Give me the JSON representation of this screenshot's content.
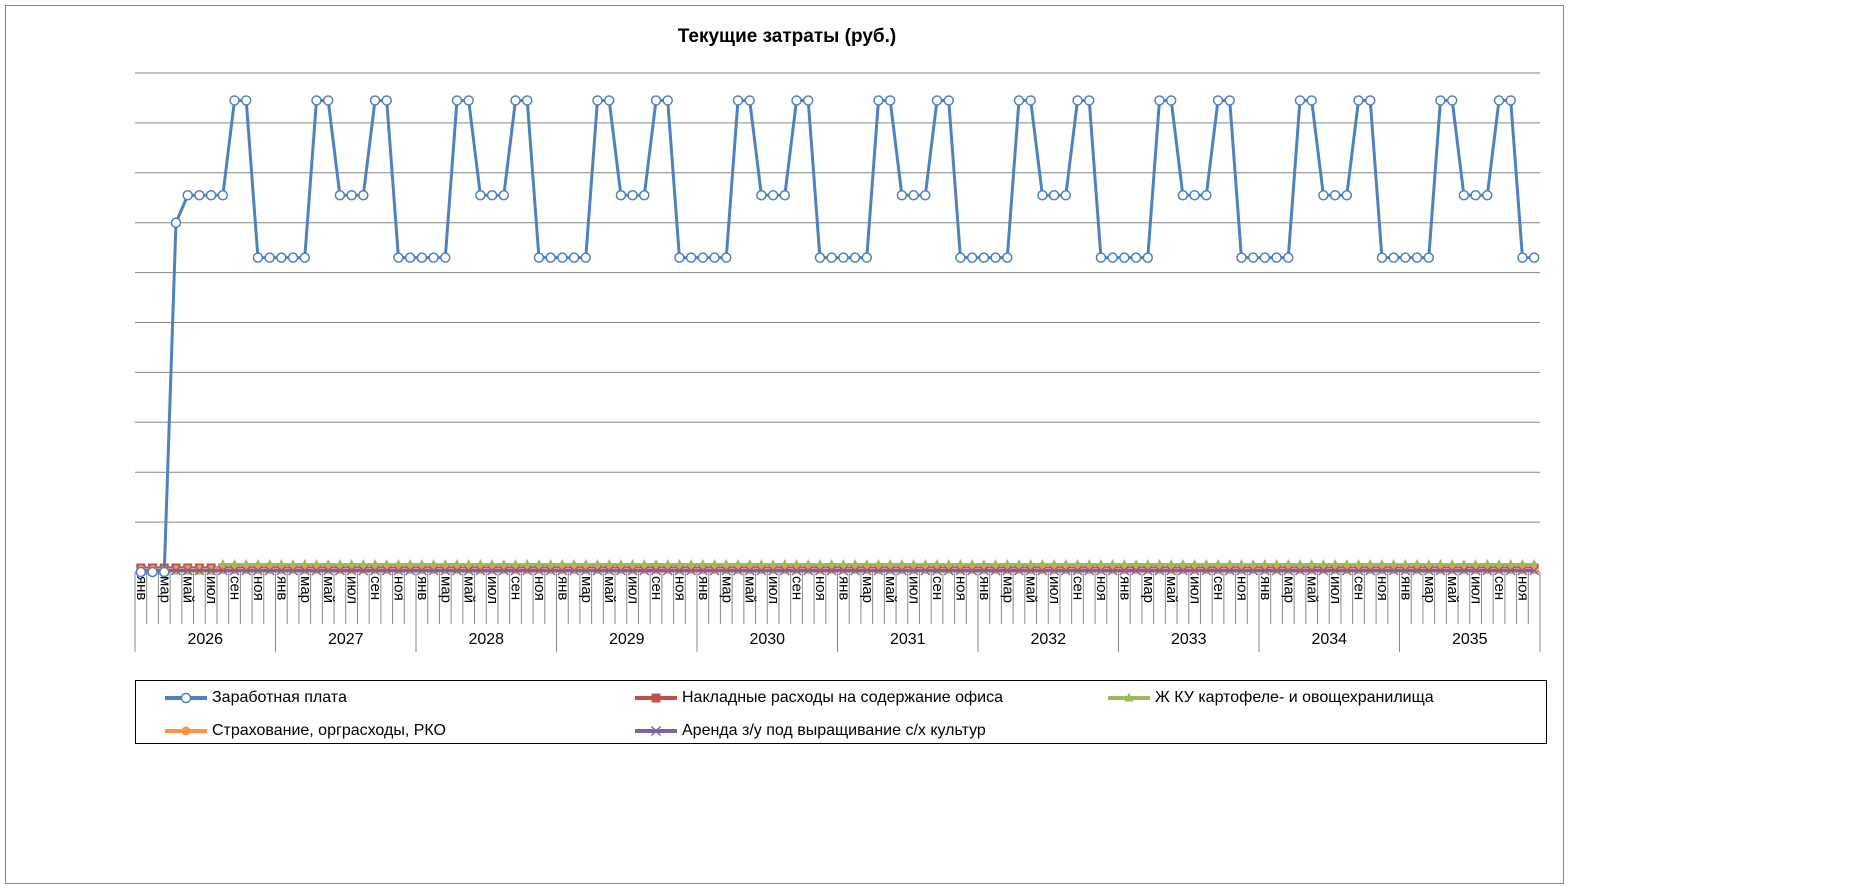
{
  "chart_data": {
    "type": "line",
    "title": "Текущие затраты (руб.)",
    "categories": [
      "янв",
      null,
      "мар",
      null,
      "май",
      null,
      "июл",
      null,
      "сен",
      null,
      "ноя",
      null,
      "янв",
      null,
      "мар",
      null,
      "май",
      null,
      "июл",
      null,
      "сен",
      null,
      "ноя",
      null,
      "янв",
      null,
      "мар",
      null,
      "май",
      null,
      "июл",
      null,
      "сен",
      null,
      "ноя",
      null,
      "янв",
      null,
      "мар",
      null,
      "май",
      null,
      "июл",
      null,
      "сен",
      null,
      "ноя",
      null,
      "янв",
      null,
      "мар",
      null,
      "май",
      null,
      "июл",
      null,
      "сен",
      null,
      "ноя",
      null,
      "янв",
      null,
      "мар",
      null,
      "май",
      null,
      "июл",
      null,
      "сен",
      null,
      "ноя",
      null,
      "янв",
      null,
      "мар",
      null,
      "май",
      null,
      "июл",
      null,
      "сен",
      null,
      "ноя",
      null,
      "янв",
      null,
      "мар",
      null,
      "май",
      null,
      "июл",
      null,
      "сен",
      null,
      "ноя",
      null,
      "янв",
      null,
      "мар",
      null,
      "май",
      null,
      "июл",
      null,
      "сен",
      null,
      "ноя",
      null,
      "янв",
      null,
      "мар",
      null,
      "май",
      null,
      "июл",
      null,
      "сен",
      null,
      "ноя",
      null
    ],
    "groups": [
      "2026",
      "2027",
      "2028",
      "2029",
      "2030",
      "2031",
      "2032",
      "2033",
      "2034",
      "2035"
    ],
    "ylim": [
      0,
      10
    ],
    "yticks": [
      0,
      1,
      2,
      3,
      4,
      5,
      6,
      7,
      8,
      9,
      10
    ],
    "grid": true,
    "series": [
      {
        "name": "Заработная плата",
        "color": "#4f81bd",
        "marker": "circle-open",
        "values": [
          0,
          0,
          0,
          7.0,
          7.55,
          7.55,
          7.55,
          7.55,
          9.45,
          9.45,
          6.3,
          6.3,
          6.3,
          6.3,
          6.3,
          9.45,
          9.45,
          7.55,
          7.55,
          7.55,
          9.45,
          9.45,
          6.3,
          6.3,
          6.3,
          6.3,
          6.3,
          9.45,
          9.45,
          7.55,
          7.55,
          7.55,
          9.45,
          9.45,
          6.3,
          6.3,
          6.3,
          6.3,
          6.3,
          9.45,
          9.45,
          7.55,
          7.55,
          7.55,
          9.45,
          9.45,
          6.3,
          6.3,
          6.3,
          6.3,
          6.3,
          9.45,
          9.45,
          7.55,
          7.55,
          7.55,
          9.45,
          9.45,
          6.3,
          6.3,
          6.3,
          6.3,
          6.3,
          9.45,
          9.45,
          7.55,
          7.55,
          7.55,
          9.45,
          9.45,
          6.3,
          6.3,
          6.3,
          6.3,
          6.3,
          9.45,
          9.45,
          7.55,
          7.55,
          7.55,
          9.45,
          9.45,
          6.3,
          6.3,
          6.3,
          6.3,
          6.3,
          9.45,
          9.45,
          7.55,
          7.55,
          7.55,
          9.45,
          9.45,
          6.3,
          6.3,
          6.3,
          6.3,
          6.3,
          9.45,
          9.45,
          7.55,
          7.55,
          7.55,
          9.45,
          9.45,
          6.3,
          6.3,
          6.3,
          6.3,
          6.3,
          9.45,
          9.45,
          7.55,
          7.55,
          7.55,
          9.45,
          9.45,
          6.3,
          6.3
        ]
      },
      {
        "name": "Накладные расходы на содержание офиса",
        "color": "#c0504d",
        "marker": "square",
        "values": [
          0.08,
          0.08,
          0.08,
          0.08,
          0.08,
          0.08,
          0.08,
          0.08,
          0.08,
          0.08,
          0.08,
          0.08,
          0.08,
          0.08,
          0.08,
          0.08,
          0.08,
          0.08,
          0.08,
          0.08,
          0.08,
          0.08,
          0.08,
          0.08,
          0.08,
          0.08,
          0.08,
          0.08,
          0.08,
          0.08,
          0.08,
          0.08,
          0.08,
          0.08,
          0.08,
          0.08,
          0.08,
          0.08,
          0.08,
          0.08,
          0.08,
          0.08,
          0.08,
          0.08,
          0.08,
          0.08,
          0.08,
          0.08,
          0.08,
          0.08,
          0.08,
          0.08,
          0.08,
          0.08,
          0.08,
          0.08,
          0.08,
          0.08,
          0.08,
          0.08,
          0.08,
          0.08,
          0.08,
          0.08,
          0.08,
          0.08,
          0.08,
          0.08,
          0.08,
          0.08,
          0.08,
          0.08,
          0.08,
          0.08,
          0.08,
          0.08,
          0.08,
          0.08,
          0.08,
          0.08,
          0.08,
          0.08,
          0.08,
          0.08,
          0.08,
          0.08,
          0.08,
          0.08,
          0.08,
          0.08,
          0.08,
          0.08,
          0.08,
          0.08,
          0.08,
          0.08,
          0.08,
          0.08,
          0.08,
          0.08,
          0.08,
          0.08,
          0.08,
          0.08,
          0.08,
          0.08,
          0.08,
          0.08,
          0.08,
          0.08,
          0.08,
          0.08,
          0.08,
          0.08,
          0.08,
          0.08,
          0.08,
          0.08,
          0.08,
          0.08
        ]
      },
      {
        "name": "Ж КУ картофеле- и овощехранилища",
        "color": "#9bbb59",
        "marker": "triangle",
        "values": [
          0.02,
          0.02,
          0.02,
          0.02,
          0.02,
          0.02,
          0.02,
          0.15,
          0.15,
          0.15,
          0.15,
          0.15,
          0.15,
          0.15,
          0.15,
          0.15,
          0.15,
          0.15,
          0.15,
          0.15,
          0.15,
          0.15,
          0.15,
          0.15,
          0.15,
          0.15,
          0.15,
          0.15,
          0.15,
          0.15,
          0.15,
          0.15,
          0.15,
          0.15,
          0.15,
          0.15,
          0.15,
          0.15,
          0.15,
          0.15,
          0.15,
          0.15,
          0.15,
          0.15,
          0.15,
          0.15,
          0.15,
          0.15,
          0.15,
          0.15,
          0.15,
          0.15,
          0.15,
          0.15,
          0.15,
          0.15,
          0.15,
          0.15,
          0.15,
          0.15,
          0.15,
          0.15,
          0.15,
          0.15,
          0.15,
          0.15,
          0.15,
          0.15,
          0.15,
          0.15,
          0.15,
          0.15,
          0.15,
          0.15,
          0.15,
          0.15,
          0.15,
          0.15,
          0.15,
          0.15,
          0.15,
          0.15,
          0.15,
          0.15,
          0.15,
          0.15,
          0.15,
          0.15,
          0.15,
          0.15,
          0.15,
          0.15,
          0.15,
          0.15,
          0.15,
          0.15,
          0.15,
          0.15,
          0.15,
          0.15,
          0.15,
          0.15,
          0.15,
          0.15,
          0.15,
          0.15,
          0.15,
          0.15,
          0.15,
          0.15,
          0.15,
          0.15,
          0.15,
          0.15,
          0.15,
          0.15,
          0.15,
          0.15,
          0.15,
          0.15
        ]
      },
      {
        "name": "Страхование, орграсходы, РКО",
        "color": "#f79646",
        "marker": "circle",
        "values": [
          0.05,
          0.05,
          0.05,
          0.05,
          0.05,
          0.05,
          0.05,
          0.05,
          0.05,
          0.05,
          0.05,
          0.05,
          0.05,
          0.05,
          0.05,
          0.05,
          0.05,
          0.05,
          0.05,
          0.05,
          0.05,
          0.05,
          0.05,
          0.05,
          0.05,
          0.05,
          0.05,
          0.05,
          0.05,
          0.05,
          0.05,
          0.05,
          0.05,
          0.05,
          0.05,
          0.05,
          0.05,
          0.05,
          0.05,
          0.05,
          0.05,
          0.05,
          0.05,
          0.05,
          0.05,
          0.05,
          0.05,
          0.05,
          0.05,
          0.05,
          0.05,
          0.05,
          0.05,
          0.05,
          0.05,
          0.05,
          0.05,
          0.05,
          0.05,
          0.05,
          0.05,
          0.05,
          0.05,
          0.05,
          0.05,
          0.05,
          0.05,
          0.05,
          0.05,
          0.05,
          0.05,
          0.05,
          0.05,
          0.05,
          0.05,
          0.05,
          0.05,
          0.05,
          0.05,
          0.05,
          0.05,
          0.05,
          0.05,
          0.05,
          0.05,
          0.05,
          0.05,
          0.05,
          0.05,
          0.05,
          0.05,
          0.05,
          0.05,
          0.05,
          0.05,
          0.05,
          0.05,
          0.05,
          0.05,
          0.05,
          0.05,
          0.05,
          0.05,
          0.05,
          0.05,
          0.05,
          0.05,
          0.05,
          0.05,
          0.05,
          0.05,
          0.05,
          0.05,
          0.05,
          0.05,
          0.05,
          0.05,
          0.05,
          0.05,
          0.05
        ]
      },
      {
        "name": "Аренда з/у под выращивание с/х культур",
        "color": "#8064a2",
        "marker": "x",
        "values": [
          0.03,
          0.03,
          0.03,
          0.03,
          0.03,
          0.03,
          0.03,
          0.03,
          0.03,
          0.03,
          0.03,
          0.03,
          0.03,
          0.03,
          0.03,
          0.03,
          0.03,
          0.03,
          0.03,
          0.03,
          0.03,
          0.03,
          0.03,
          0.03,
          0.03,
          0.03,
          0.03,
          0.03,
          0.03,
          0.03,
          0.03,
          0.03,
          0.03,
          0.03,
          0.03,
          0.03,
          0.03,
          0.03,
          0.03,
          0.03,
          0.03,
          0.03,
          0.03,
          0.03,
          0.03,
          0.03,
          0.03,
          0.03,
          0.03,
          0.03,
          0.03,
          0.03,
          0.03,
          0.03,
          0.03,
          0.03,
          0.03,
          0.03,
          0.03,
          0.03,
          0.03,
          0.03,
          0.03,
          0.03,
          0.03,
          0.03,
          0.03,
          0.03,
          0.03,
          0.03,
          0.03,
          0.03,
          0.03,
          0.03,
          0.03,
          0.03,
          0.03,
          0.03,
          0.03,
          0.03,
          0.03,
          0.03,
          0.03,
          0.03,
          0.03,
          0.03,
          0.03,
          0.03,
          0.03,
          0.03,
          0.03,
          0.03,
          0.03,
          0.03,
          0.03,
          0.03,
          0.03,
          0.03,
          0.03,
          0.03,
          0.03,
          0.03,
          0.03,
          0.03,
          0.03,
          0.03,
          0.03,
          0.03,
          0.03,
          0.03,
          0.03,
          0.03,
          0.03,
          0.03,
          0.03,
          0.03,
          0.03,
          0.03,
          0.03,
          0.03
        ]
      }
    ]
  }
}
